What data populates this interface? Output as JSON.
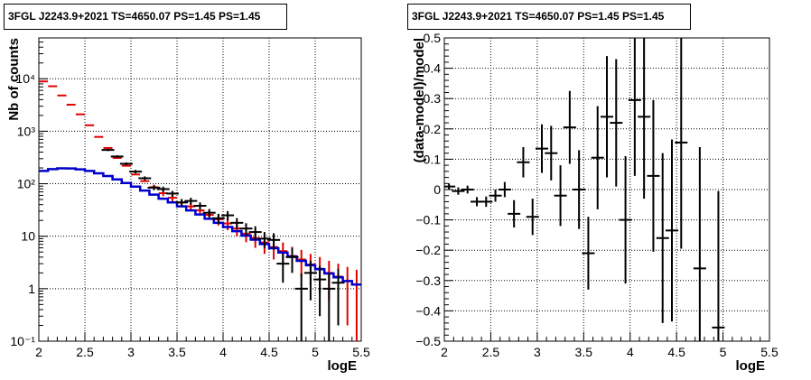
{
  "chart_data": [
    {
      "type": "scatter",
      "title": "3FGL J2243.9+2021 TS=4650.07 PS=1.45 PS=1.45",
      "xlabel": "logE",
      "ylabel": "Nb of counts",
      "xlim": [
        2,
        5.5
      ],
      "ylim": [
        0.1,
        60000
      ],
      "yscale": "log",
      "grid": true,
      "x_ticks": [
        2,
        2.5,
        3,
        3.5,
        4,
        4.5,
        5,
        5.5
      ],
      "x_tick_labels": [
        "2",
        "2.5",
        "3",
        "3.5",
        "4",
        "4.5",
        "5",
        "5.5"
      ],
      "y_ticks": [
        0.1,
        1,
        10,
        100,
        1000,
        10000
      ],
      "y_tick_labels": [
        "10⁻¹",
        "1",
        "10",
        "10²",
        "10³",
        "10⁴"
      ],
      "bin_width": 0.1,
      "series": [
        {
          "role": "total-model",
          "color": "#e00000",
          "x": [
            2.05,
            2.15,
            2.25,
            2.35,
            2.45,
            2.55,
            2.65,
            2.75,
            2.85,
            2.95,
            3.05,
            3.15,
            3.25,
            3.35,
            3.45,
            3.55,
            3.65,
            3.75,
            3.85,
            3.95,
            4.05,
            4.15,
            4.25,
            4.35,
            4.45,
            4.55,
            4.65,
            4.75,
            4.85,
            4.95,
            5.05,
            5.15,
            5.25,
            5.35,
            5.45
          ],
          "y": [
            8900,
            7200,
            4800,
            3200,
            2100,
            1300,
            780,
            480,
            310,
            220,
            150,
            112,
            86,
            66,
            54,
            44,
            37,
            31,
            25.5,
            21,
            17.5,
            14,
            11.2,
            9.2,
            7.6,
            6.2,
            5.2,
            4.2,
            3.6,
            2.9,
            2.4,
            2.0,
            1.7,
            1.4,
            1.2
          ],
          "yerr": [
            0,
            0,
            0,
            0,
            0,
            0,
            0,
            0,
            0,
            0,
            0,
            0,
            10,
            8,
            8,
            7,
            6,
            6,
            5,
            5,
            4.5,
            4,
            3.5,
            3.2,
            3,
            2.6,
            2.4,
            2.1,
            1.9,
            1.7,
            1.6,
            1.4,
            1.3,
            1.2,
            1.1
          ]
        },
        {
          "role": "source-model",
          "color": "#0000cc",
          "x": [
            2.05,
            2.15,
            2.25,
            2.35,
            2.45,
            2.55,
            2.65,
            2.75,
            2.85,
            2.95,
            3.05,
            3.15,
            3.25,
            3.35,
            3.45,
            3.55,
            3.65,
            3.75,
            3.85,
            3.95,
            4.05,
            4.15,
            4.25,
            4.35,
            4.45,
            4.55,
            4.65,
            4.75,
            4.85,
            4.95,
            5.05,
            5.15,
            5.25,
            5.35,
            5.45
          ],
          "y": [
            175,
            190,
            196,
            195,
            188,
            175,
            158,
            140,
            121,
            103,
            88,
            74,
            62,
            52,
            44,
            37,
            31,
            26,
            21.5,
            18,
            15,
            12.5,
            10.3,
            8.6,
            7.1,
            5.9,
            4.9,
            4.1,
            3.4,
            2.8,
            2.35,
            1.95,
            1.65,
            1.4,
            1.2
          ]
        },
        {
          "role": "data",
          "color": "#000000",
          "x": [
            2.75,
            2.85,
            2.95,
            3.05,
            3.15,
            3.25,
            3.35,
            3.45,
            3.55,
            3.65,
            3.75,
            3.85,
            3.95,
            4.05,
            4.15,
            4.25,
            4.35,
            4.45,
            4.55,
            4.65,
            4.75,
            4.85,
            4.95,
            5.05,
            5.15,
            5.25
          ],
          "y": [
            440,
            330,
            240,
            170,
            127,
            84,
            79,
            65,
            44,
            47,
            38,
            28,
            22,
            25,
            18,
            14,
            12,
            9,
            8.5,
            3,
            4,
            1,
            2,
            1.5,
            1,
            1.3
          ],
          "yerr": [
            21,
            18,
            15,
            13,
            11,
            9,
            9,
            8,
            7,
            7,
            6,
            5,
            4.7,
            5,
            4.2,
            3.7,
            3.5,
            3,
            2.9,
            1.7,
            2,
            0.95,
            1.4,
            1.2,
            0.95,
            1.1
          ]
        }
      ]
    },
    {
      "type": "scatter",
      "title": "3FGL J2243.9+2021 TS=4650.07 PS=1.45 PS=1.45",
      "xlabel": "logE",
      "ylabel": "(data-model)/model",
      "xlim": [
        2,
        5.5
      ],
      "ylim": [
        -0.5,
        0.5
      ],
      "grid": true,
      "x_ticks": [
        2,
        2.5,
        3,
        3.5,
        4,
        4.5,
        5,
        5.5
      ],
      "x_tick_labels": [
        "2",
        "2.5",
        "3",
        "3.5",
        "4",
        "4.5",
        "5",
        "5.5"
      ],
      "y_ticks": [
        -0.5,
        -0.4,
        -0.3,
        -0.2,
        -0.1,
        0,
        0.1,
        0.2,
        0.3,
        0.4,
        0.5
      ],
      "y_tick_labels": [
        "−0.5",
        "−0.4",
        "−0.3",
        "−0.2",
        "−0.1",
        "0",
        "0.1",
        "0.2",
        "0.3",
        "0.4",
        "0.5"
      ],
      "bin_width": 0.1,
      "series": [
        {
          "role": "residuals",
          "color": "#000000",
          "x": [
            2.05,
            2.15,
            2.25,
            2.35,
            2.45,
            2.55,
            2.65,
            2.75,
            2.85,
            2.95,
            3.05,
            3.15,
            3.25,
            3.35,
            3.45,
            3.55,
            3.65,
            3.75,
            3.85,
            3.95,
            4.05,
            4.15,
            4.25,
            4.35,
            4.45,
            4.55,
            4.75,
            4.95
          ],
          "y": [
            0.01,
            -0.005,
            0.0,
            -0.04,
            -0.04,
            -0.02,
            0.0,
            -0.08,
            0.09,
            -0.09,
            0.135,
            0.12,
            -0.02,
            0.205,
            0.0,
            -0.21,
            0.105,
            0.24,
            0.22,
            -0.1,
            0.295,
            0.24,
            0.045,
            -0.16,
            -0.135,
            0.155,
            -0.26,
            -0.455
          ],
          "yerr": [
            0.01,
            0.012,
            0.013,
            0.015,
            0.017,
            0.02,
            0.025,
            0.045,
            0.05,
            0.06,
            0.08,
            0.09,
            0.1,
            0.12,
            0.13,
            0.12,
            0.17,
            0.2,
            0.21,
            0.21,
            0.25,
            0.27,
            0.25,
            0.28,
            0.3,
            0.35,
            0.4,
            0.45
          ]
        }
      ]
    }
  ]
}
